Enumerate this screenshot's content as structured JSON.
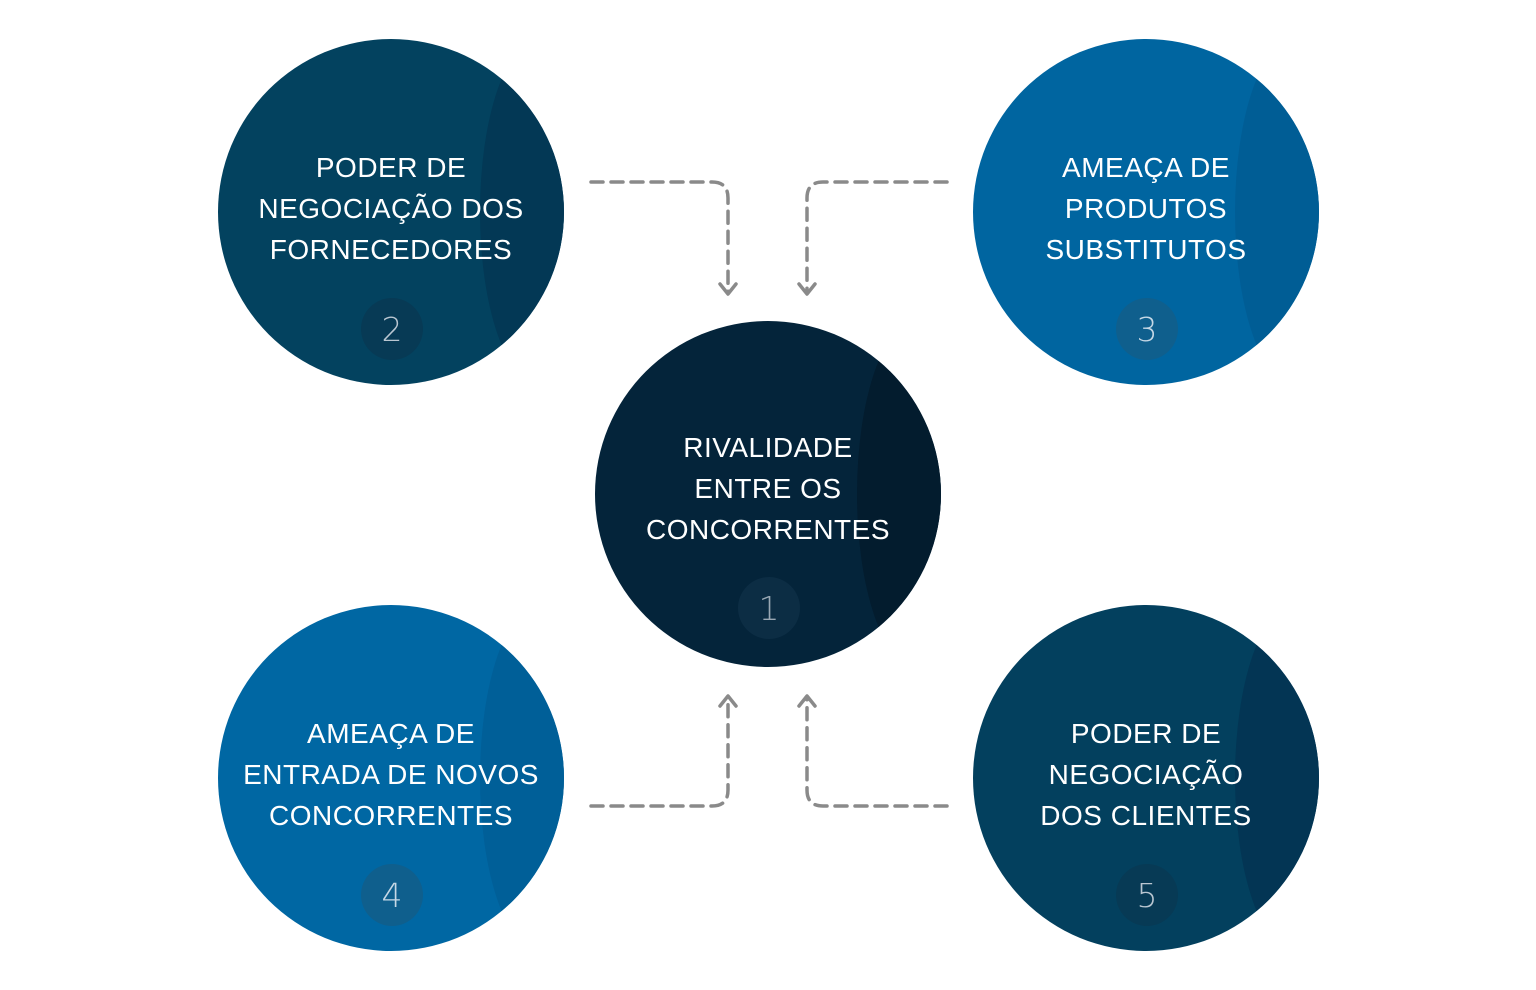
{
  "forces": {
    "center": {
      "lines": [
        "RIVALIDADE",
        "ENTRE OS",
        "CONCORRENTES"
      ],
      "number": "1",
      "color": "#04243a"
    },
    "top_left": {
      "lines": [
        "PODER DE",
        "NEGOCIAÇÃO DOS",
        "FORNECEDORES"
      ],
      "number": "2",
      "color": "#03425f"
    },
    "top_right": {
      "lines": [
        "AMEAÇA DE",
        "PRODUTOS",
        "SUBSTITUTOS"
      ],
      "number": "3",
      "color": "#0065a0"
    },
    "bottom_left": {
      "lines": [
        "AMEAÇA DE",
        "ENTRADA DE NOVOS",
        "CONCORRENTES"
      ],
      "number": "4",
      "color": "#0067a3"
    },
    "bottom_right": {
      "lines": [
        "PODER DE",
        "NEGOCIAÇÃO",
        "DOS CLIENTES"
      ],
      "number": "5",
      "color": "#03405e"
    }
  },
  "connector_color": "#8a8a8a"
}
